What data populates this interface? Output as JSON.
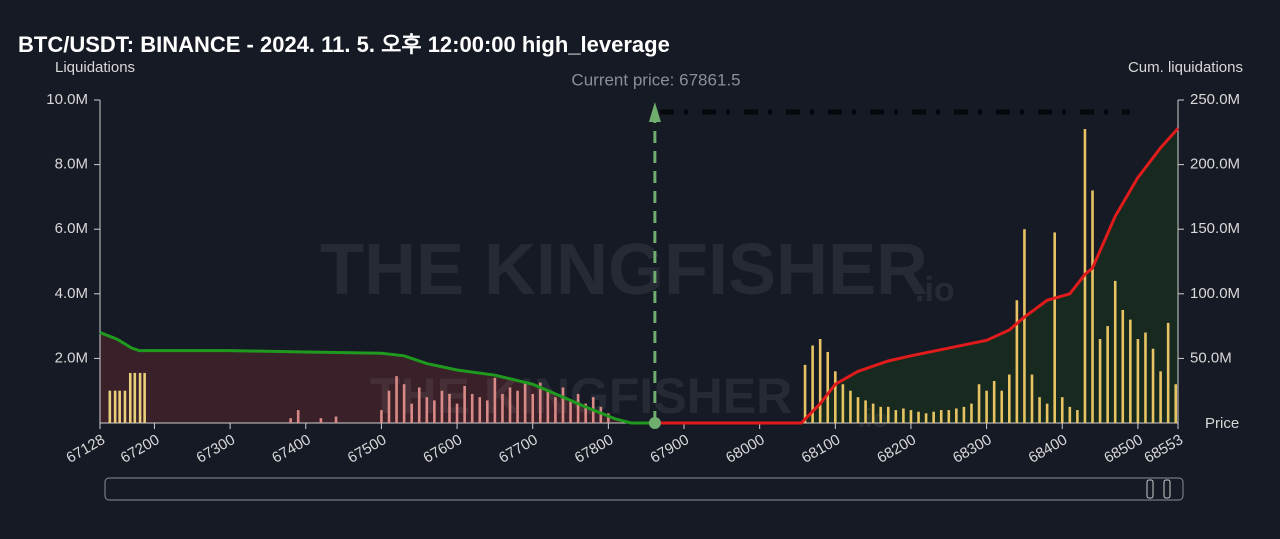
{
  "chart_data": {
    "type": "bar",
    "title": "BTC/USDT: BINANCE - 2024. 11. 5. 오후 12:00:00 high_leverage",
    "y_label": "Liquidations",
    "y2_label": "Cum. liquidations",
    "x_label": "Price",
    "annotation": "Current price: 67861.5",
    "current_price": 67861.5,
    "watermark": "THE KINGFISHER",
    "watermark_suffix": ".io",
    "xlim": [
      67128,
      68553
    ],
    "xticks": [
      67128,
      67200,
      67300,
      67400,
      67500,
      67600,
      67700,
      67800,
      67900,
      68000,
      68100,
      68200,
      68300,
      68400,
      68500,
      68553
    ],
    "ylim": [
      0,
      10000000
    ],
    "yticks": [
      {
        "value": 2000000,
        "label": "2.0M"
      },
      {
        "value": 4000000,
        "label": "4.0M"
      },
      {
        "value": 6000000,
        "label": "6.0M"
      },
      {
        "value": 8000000,
        "label": "8.0M"
      },
      {
        "value": 10000000,
        "label": "10.0M"
      }
    ],
    "y2lim": [
      0,
      250000000
    ],
    "y2ticks": [
      {
        "value": 50000000,
        "label": "50.0M"
      },
      {
        "value": 100000000,
        "label": "100.0M"
      },
      {
        "value": 150000000,
        "label": "150.0M"
      },
      {
        "value": 200000000,
        "label": "200.0M"
      },
      {
        "value": 250000000,
        "label": "250.0M"
      }
    ],
    "series": [
      {
        "type": "bar",
        "color": "#e8cf7a",
        "x": [
          67141,
          67148,
          67154,
          67161,
          67168,
          67174,
          67181,
          67187
        ],
        "values": [
          1000000,
          1000000,
          1000000,
          1000000,
          1550000,
          1550000,
          1550000,
          1550000
        ]
      },
      {
        "type": "bar",
        "color": "#d98a86",
        "x": [
          67380,
          67390,
          67420,
          67440,
          67500,
          67510,
          67520,
          67530,
          67540,
          67550,
          67560,
          67570,
          67580,
          67590,
          67600,
          67610,
          67620,
          67630,
          67640,
          67650,
          67660,
          67670,
          67680,
          67690,
          67700,
          67710,
          67720,
          67730,
          67740,
          67750,
          67760,
          67770,
          67780,
          67790,
          67800
        ],
        "values": [
          150000,
          400000,
          150000,
          200000,
          400000,
          1000000,
          1450000,
          1200000,
          600000,
          1100000,
          800000,
          700000,
          1000000,
          900000,
          600000,
          1150000,
          900000,
          800000,
          700000,
          1400000,
          900000,
          1100000,
          1000000,
          1300000,
          900000,
          1250000,
          1000000,
          800000,
          1100000,
          700000,
          900000,
          600000,
          800000,
          500000,
          300000
        ]
      },
      {
        "type": "bar",
        "color": "#e8c364",
        "x": [
          68060,
          68070,
          68080,
          68090,
          68100,
          68110,
          68120,
          68130,
          68140,
          68150,
          68160,
          68170,
          68180,
          68190,
          68200,
          68210,
          68220,
          68230,
          68240,
          68250,
          68260,
          68270,
          68280,
          68290,
          68300,
          68310,
          68320,
          68330,
          68340,
          68350,
          68360,
          68370,
          68380,
          68390,
          68400,
          68410,
          68420,
          68430,
          68440,
          68450,
          68460,
          68470,
          68480,
          68490,
          68500,
          68510,
          68520,
          68530,
          68540,
          68550
        ],
        "values": [
          1800000,
          2400000,
          2600000,
          2200000,
          1600000,
          1200000,
          1000000,
          800000,
          700000,
          600000,
          500000,
          500000,
          400000,
          450000,
          400000,
          350000,
          300000,
          350000,
          400000,
          400000,
          450000,
          500000,
          600000,
          1200000,
          1000000,
          1300000,
          1000000,
          1500000,
          3800000,
          6000000,
          1500000,
          800000,
          600000,
          5900000,
          800000,
          500000,
          400000,
          9100000,
          7200000,
          2600000,
          3000000,
          4400000,
          3500000,
          3200000,
          2600000,
          2800000,
          2300000,
          1600000,
          3100000,
          1200000
        ]
      },
      {
        "type": "line",
        "axis": "y2",
        "color": "#1f9a1f",
        "fill": "#3a2029",
        "x": [
          67128,
          67150,
          67170,
          67180,
          67300,
          67400,
          67500,
          67530,
          67560,
          67600,
          67650,
          67700,
          67740,
          67780,
          67810,
          67830,
          67861.5
        ],
        "values": [
          70000000,
          65000000,
          58000000,
          56000000,
          56000000,
          55000000,
          54000000,
          52000000,
          46000000,
          41000000,
          37000000,
          30000000,
          20000000,
          10000000,
          3000000,
          0,
          0
        ]
      },
      {
        "type": "line",
        "axis": "y2",
        "color": "#e01b1b",
        "fill": "#18291f",
        "x": [
          67861.5,
          68055,
          68080,
          68100,
          68130,
          68170,
          68200,
          68250,
          68300,
          68330,
          68350,
          68380,
          68410,
          68430,
          68440,
          68470,
          68500,
          68530,
          68553
        ],
        "values": [
          0,
          0,
          15000000,
          30000000,
          40000000,
          48000000,
          52000000,
          58000000,
          64000000,
          72000000,
          82000000,
          95000000,
          100000000,
          115000000,
          120000000,
          160000000,
          190000000,
          213000000,
          228000000
        ]
      }
    ]
  }
}
